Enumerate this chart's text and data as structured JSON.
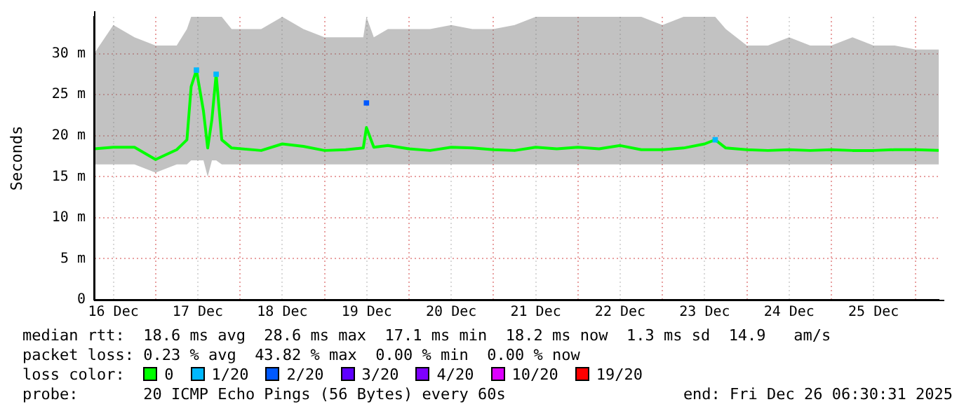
{
  "chart_data": {
    "type": "line",
    "ylabel": "Seconds",
    "xlim": [
      "2025-12-16T06:30",
      "2025-12-26T06:30"
    ],
    "xticks": [
      {
        "value": "2025-12-16T12:00",
        "label": "16 Dec"
      },
      {
        "value": "2025-12-17T00:00",
        "label": null
      },
      {
        "value": "2025-12-17T12:00",
        "label": "17 Dec"
      },
      {
        "value": "2025-12-18T00:00",
        "label": null
      },
      {
        "value": "2025-12-18T12:00",
        "label": "18 Dec"
      },
      {
        "value": "2025-12-19T00:00",
        "label": null
      },
      {
        "value": "2025-12-19T12:00",
        "label": "19 Dec"
      },
      {
        "value": "2025-12-20T00:00",
        "label": null
      },
      {
        "value": "2025-12-20T12:00",
        "label": "20 Dec"
      },
      {
        "value": "2025-12-21T00:00",
        "label": null
      },
      {
        "value": "2025-12-21T12:00",
        "label": "21 Dec"
      },
      {
        "value": "2025-12-22T00:00",
        "label": null
      },
      {
        "value": "2025-12-22T12:00",
        "label": "22 Dec"
      },
      {
        "value": "2025-12-23T00:00",
        "label": null
      },
      {
        "value": "2025-12-23T12:00",
        "label": "23 Dec"
      },
      {
        "value": "2025-12-24T00:00",
        "label": null
      },
      {
        "value": "2025-12-24T12:00",
        "label": "24 Dec"
      },
      {
        "value": "2025-12-25T00:00",
        "label": null
      },
      {
        "value": "2025-12-25T12:00",
        "label": "25 Dec"
      },
      {
        "value": "2025-12-26T00:00",
        "label": null
      }
    ],
    "ylim": [
      0,
      34.5
    ],
    "yticks": [
      0,
      {
        "value": 5,
        "label": "5 m"
      },
      {
        "value": 10,
        "label": "10 m"
      },
      {
        "value": 15,
        "label": "15 m"
      },
      {
        "value": 20,
        "label": "20 m"
      },
      {
        "value": 25,
        "label": "25 m"
      },
      {
        "value": 30,
        "label": "30 m"
      }
    ],
    "grid": true,
    "legend": "bottom",
    "legend_title": "loss color:",
    "series": [
      {
        "name": "0",
        "color": "#00ff00",
        "marker": "none",
        "x": [
          "2025-12-16T06:30",
          "2025-12-16T12:00",
          "2025-12-16T18:00",
          "2025-12-17T00:00",
          "2025-12-17T06:00",
          "2025-12-17T08:54",
          "2025-12-17T10:06",
          "2025-12-17T11:36",
          "2025-12-17T13:36",
          "2025-12-17T14:48",
          "2025-12-17T16:00",
          "2025-12-17T17:12",
          "2025-12-17T18:48",
          "2025-12-17T21:36",
          "2025-12-18T06:00",
          "2025-12-18T12:00",
          "2025-12-18T18:00",
          "2025-12-19T00:00",
          "2025-12-19T06:00",
          "2025-12-19T11:00",
          "2025-12-19T11:54",
          "2025-12-19T14:00",
          "2025-12-19T18:00",
          "2025-12-20T00:00",
          "2025-12-20T06:00",
          "2025-12-20T12:00",
          "2025-12-20T18:00",
          "2025-12-21T00:00",
          "2025-12-21T06:00",
          "2025-12-21T12:00",
          "2025-12-21T18:00",
          "2025-12-22T00:00",
          "2025-12-22T06:00",
          "2025-12-22T12:00",
          "2025-12-22T18:00",
          "2025-12-23T00:00",
          "2025-12-23T06:00",
          "2025-12-23T12:00",
          "2025-12-23T15:00",
          "2025-12-23T18:00",
          "2025-12-24T00:00",
          "2025-12-24T06:00",
          "2025-12-24T12:00",
          "2025-12-24T18:00",
          "2025-12-25T00:00",
          "2025-12-25T06:00",
          "2025-12-25T12:00",
          "2025-12-25T18:00",
          "2025-12-26T00:00",
          "2025-12-26T06:30"
        ],
        "values": [
          18.4,
          18.6,
          18.6,
          17.1,
          18.3,
          19.5,
          26,
          28,
          23,
          18.5,
          22,
          27.5,
          19.5,
          18.5,
          18.2,
          19,
          18.7,
          18.2,
          18.3,
          18.5,
          21,
          18.6,
          18.8,
          18.4,
          18.2,
          18.6,
          18.5,
          18.3,
          18.2,
          18.6,
          18.4,
          18.6,
          18.4,
          18.8,
          18.3,
          18.3,
          18.5,
          19,
          19.5,
          18.5,
          18.3,
          18.2,
          18.3,
          18.2,
          18.3,
          18.2,
          18.2,
          18.3,
          18.3,
          18.2
        ],
        "lower": [
          16.5,
          16.5,
          16.5,
          15.5,
          16.5,
          16.5,
          17,
          17,
          17,
          15,
          17,
          17,
          16.5,
          16.5,
          16.5,
          16.5,
          16.5,
          16.5,
          16.5,
          16.5,
          16.5,
          16.5,
          16.5,
          16.5,
          16.5,
          16.5,
          16.5,
          16.5,
          16.5,
          16.5,
          16.5,
          16.5,
          16.5,
          16.5,
          16.5,
          16.5,
          16.5,
          16.5,
          16.5,
          16.5,
          16.5,
          16.5,
          16.5,
          16.5,
          16.5,
          16.5,
          16.5,
          16.5,
          16.5,
          16.5
        ],
        "upper": [
          30,
          33.5,
          32,
          31,
          31,
          33,
          34.5,
          34.5,
          34.5,
          34.5,
          34.5,
          34.5,
          34.5,
          33,
          33,
          34.5,
          33,
          32,
          32,
          32,
          34.5,
          32,
          33,
          33,
          33,
          33.5,
          33,
          33,
          33.5,
          34.5,
          34.5,
          34.5,
          34.5,
          34.5,
          34.5,
          33.5,
          34.5,
          34.5,
          34.5,
          33,
          31,
          31,
          32,
          31,
          31,
          32,
          31,
          31,
          30.5,
          30.5
        ]
      },
      {
        "name": "1/20",
        "type": "scatter",
        "color": "#00b8ff",
        "marker": "square",
        "x": [
          "2025-12-17T11:36",
          "2025-12-17T17:12",
          "2025-12-23T15:00"
        ],
        "values": [
          28,
          27.5,
          19.5
        ]
      },
      {
        "name": "2/20",
        "type": "scatter",
        "color": "#0059ff",
        "marker": "square",
        "x": [
          "2025-12-19T11:54"
        ],
        "values": [
          24
        ]
      },
      {
        "name": "3/20",
        "type": "scatter",
        "color": "#5e00ff",
        "marker": "square"
      },
      {
        "name": "4/20",
        "type": "scatter",
        "color": "#7e00ff",
        "marker": "square"
      },
      {
        "name": "10/20",
        "type": "scatter",
        "color": "#dd00ff",
        "marker": "square"
      },
      {
        "name": "19/20",
        "type": "scatter",
        "color": "#ff0000",
        "marker": "square"
      }
    ],
    "annotations": [
      "median rtt:  18.6 ms avg  28.6 ms max  17.1 ms min  18.2 ms now  1.3 ms sd  14.9   am/s",
      "packet loss: 0.23 % avg  43.82 % max  0.00 % min  0.00 % now",
      "probe:       20 ICMP Echo Pings (56 Bytes) every 60s",
      "end: Fri Dec 26 06:30:31 2025"
    ]
  }
}
